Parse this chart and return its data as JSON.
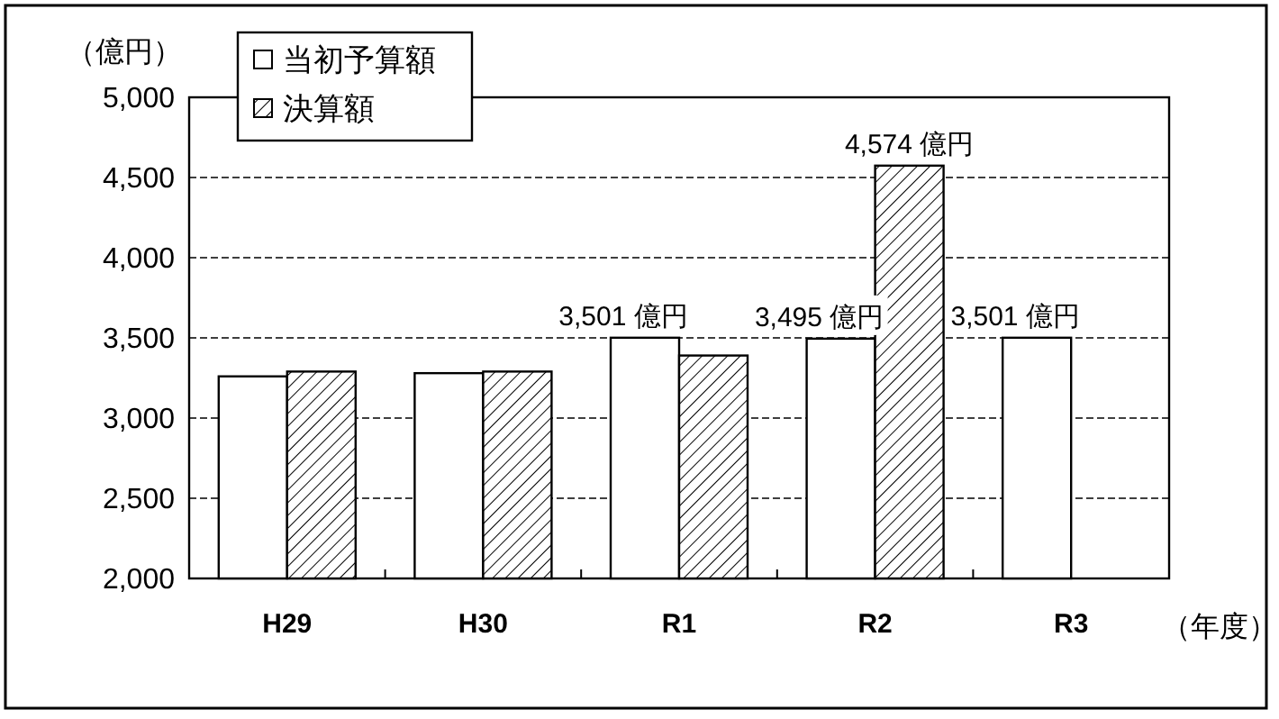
{
  "chart_data": {
    "type": "bar",
    "ylabel": "（億円）",
    "xlabel": "（年度）",
    "categories": [
      "H29",
      "H30",
      "R1",
      "R2",
      "R3"
    ],
    "series": [
      {
        "name": "当初予算額",
        "color": "#ffffff",
        "values": [
          3260,
          3280,
          3501,
          3495,
          3501
        ],
        "value_labels": [
          null,
          null,
          "3,501 億円",
          "3,495 億円",
          "3,501 億円"
        ]
      },
      {
        "name": "決算額",
        "color": "#000000",
        "values": [
          3290,
          3290,
          3390,
          4574,
          null
        ],
        "value_labels": [
          null,
          null,
          null,
          "4,574 億円",
          null
        ]
      }
    ],
    "ylim": [
      2000,
      5000
    ],
    "yticks": [
      {
        "value": 2000,
        "label": "2,000"
      },
      {
        "value": 2500,
        "label": "2,500"
      },
      {
        "value": 3000,
        "label": "3,000"
      },
      {
        "value": 3500,
        "label": "3,500"
      },
      {
        "value": 4000,
        "label": "4,000"
      },
      {
        "value": 4500,
        "label": "4,500"
      },
      {
        "value": 5000,
        "label": "5,000"
      }
    ],
    "grid": "y",
    "legend": "top left"
  }
}
